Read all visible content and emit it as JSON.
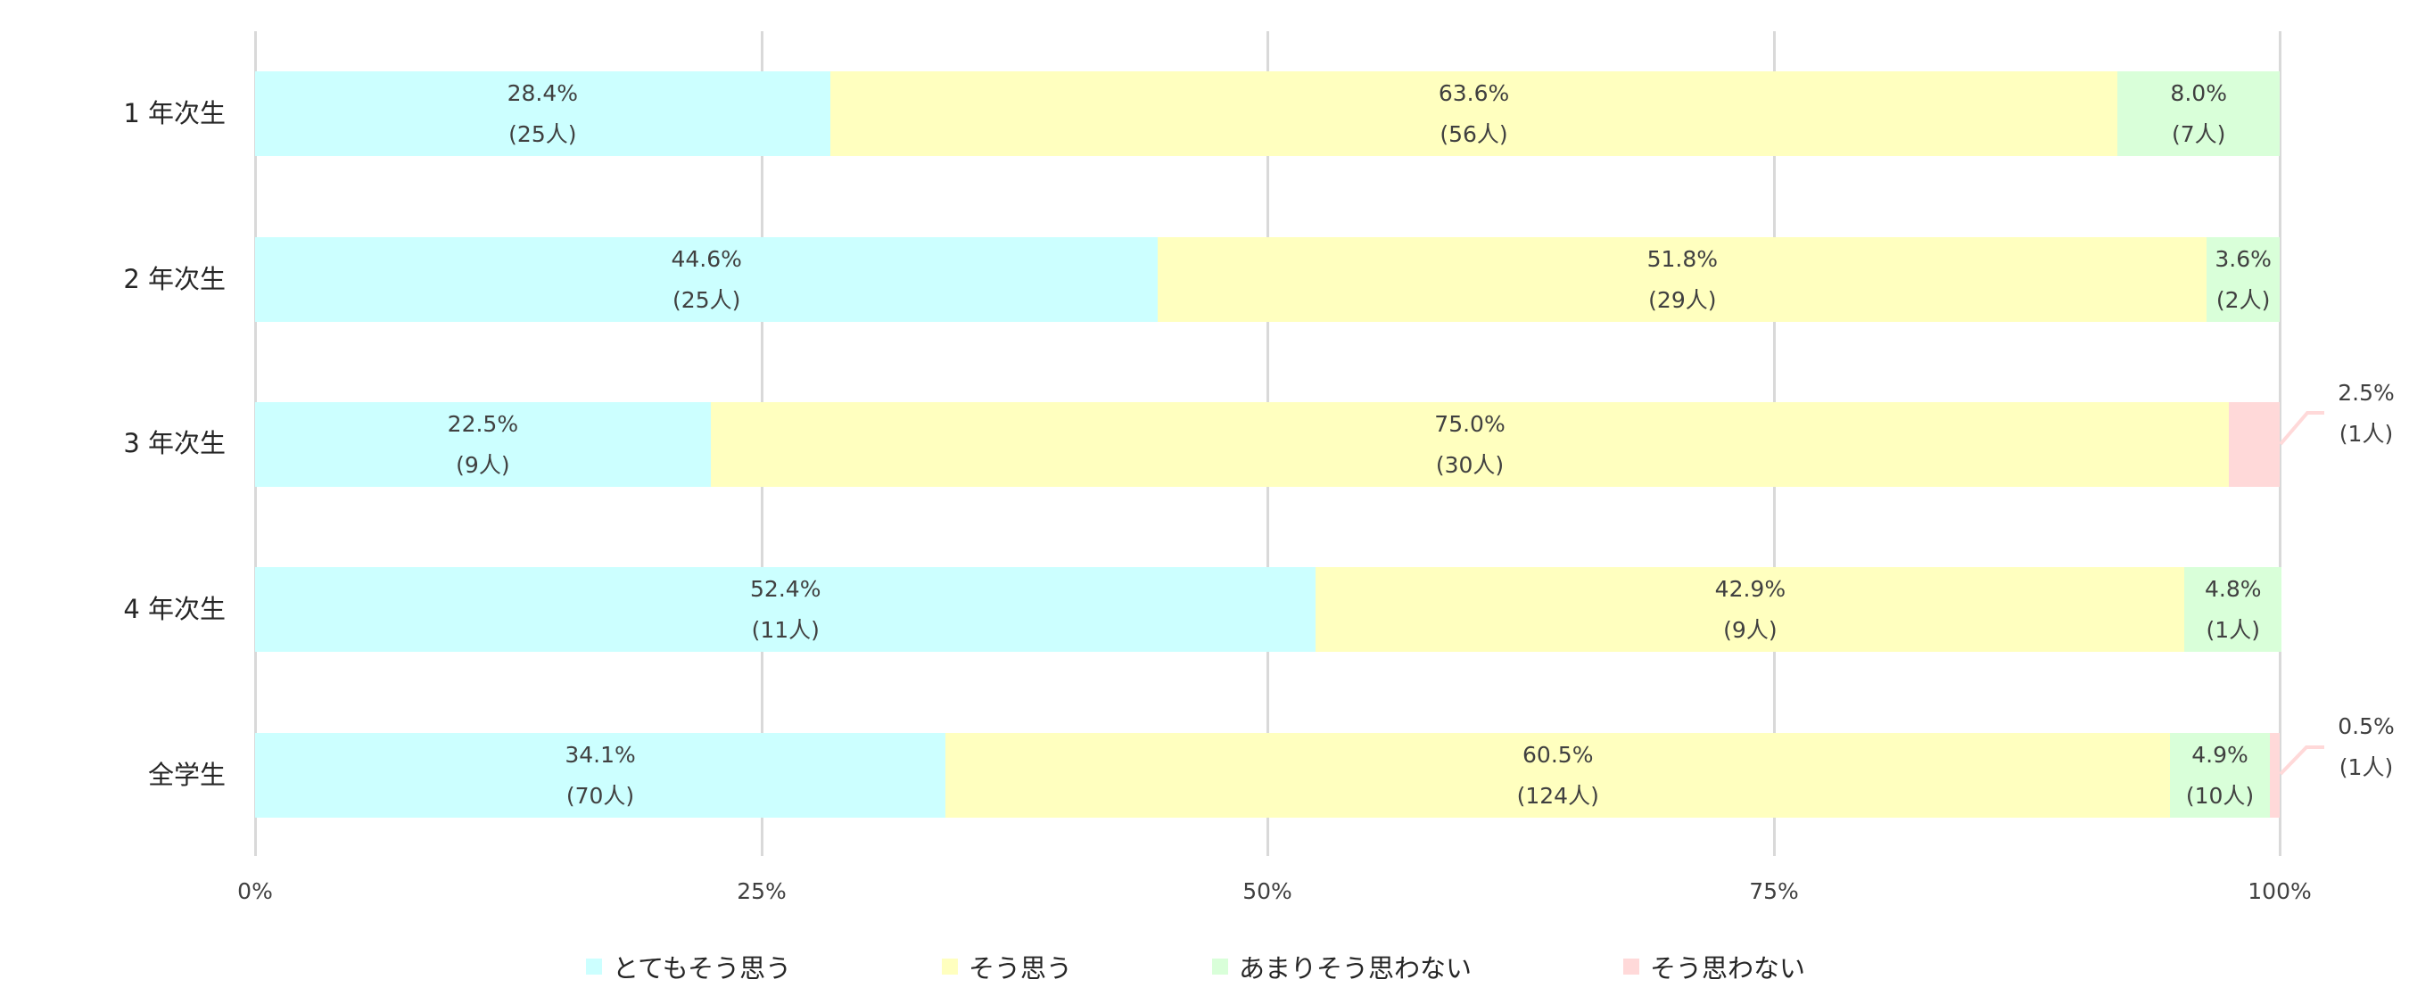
{
  "chart_data": {
    "type": "bar",
    "orientation": "horizontal",
    "stacked": "percent",
    "title": "",
    "xlabel": "",
    "ylabel": "",
    "xlim": [
      0,
      100
    ],
    "x_ticks": [
      "0%",
      "25%",
      "50%",
      "75%",
      "100%"
    ],
    "grid": true,
    "legend_position": "bottom",
    "categories": [
      "1年次生",
      "2年次生",
      "3年次生",
      "4年次生",
      "全学生"
    ],
    "series": [
      {
        "name": "とてもそう思う",
        "color": "#ccffff",
        "values": [
          28.4,
          44.6,
          22.5,
          52.4,
          34.1
        ],
        "counts": [
          25,
          25,
          9,
          11,
          70
        ]
      },
      {
        "name": "そう思う",
        "color": "#ffffbf",
        "values": [
          63.6,
          51.8,
          75.0,
          42.9,
          60.5
        ],
        "counts": [
          56,
          29,
          30,
          9,
          124
        ]
      },
      {
        "name": "あまりそう思わない",
        "color": "#d9ffd9",
        "values": [
          8.0,
          3.6,
          0,
          4.8,
          4.9
        ],
        "counts": [
          7,
          2,
          0,
          1,
          10
        ]
      },
      {
        "name": "そう思わない",
        "color": "#ffd9d9",
        "values": [
          0,
          0,
          2.5,
          0,
          0.5
        ],
        "counts": [
          0,
          0,
          1,
          0,
          1
        ]
      }
    ]
  },
  "y_labels": [
    "1 年次生",
    "2 年次生",
    "3 年次生",
    "4 年次生",
    "全学生"
  ],
  "x_ticks": [
    "0%",
    "25%",
    "50%",
    "75%",
    "100%"
  ],
  "bars": [
    {
      "segments": [
        {
          "pct": "28.4%",
          "count": "(25人)"
        },
        {
          "pct": "63.6%",
          "count": "(56人)"
        },
        {
          "pct": "8.0%",
          "count": "(7人)"
        },
        {
          "pct": "",
          "count": ""
        }
      ]
    },
    {
      "segments": [
        {
          "pct": "44.6%",
          "count": "(25人)"
        },
        {
          "pct": "51.8%",
          "count": "(29人)"
        },
        {
          "pct": "3.6%",
          "count": "(2人)"
        },
        {
          "pct": "",
          "count": ""
        }
      ]
    },
    {
      "segments": [
        {
          "pct": "22.5%",
          "count": "(9人)"
        },
        {
          "pct": "75.0%",
          "count": "(30人)"
        },
        {
          "pct": "",
          "count": ""
        },
        {
          "pct": "2.5%",
          "count": "(1人)"
        }
      ]
    },
    {
      "segments": [
        {
          "pct": "52.4%",
          "count": "(11人)"
        },
        {
          "pct": "42.9%",
          "count": "(9人)"
        },
        {
          "pct": "4.8%",
          "count": "(1人)"
        },
        {
          "pct": "",
          "count": ""
        }
      ]
    },
    {
      "segments": [
        {
          "pct": "34.1%",
          "count": "(70人)"
        },
        {
          "pct": "60.5%",
          "count": "(124人)"
        },
        {
          "pct": "4.9%",
          "count": "(10人)"
        },
        {
          "pct": "0.5%",
          "count": "(1人)"
        }
      ]
    }
  ],
  "legend": [
    {
      "label": "とてもそう思う",
      "color": "#ccffff"
    },
    {
      "label": "そう思う",
      "color": "#ffffbf"
    },
    {
      "label": "あまりそう思わない",
      "color": "#d9ffd9"
    },
    {
      "label": "そう思わない",
      "color": "#ffd9d9"
    }
  ]
}
